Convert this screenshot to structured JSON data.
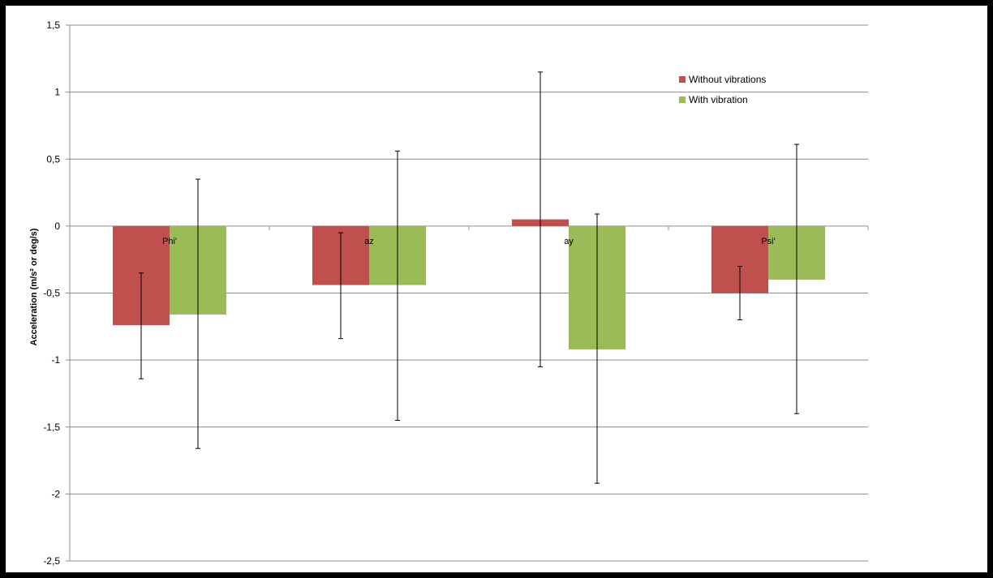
{
  "chart_data": {
    "type": "bar",
    "title": "",
    "xlabel": "",
    "ylabel": "Acceleration (m/s² or deg/s)",
    "categories": [
      "Phi'",
      "az",
      "ay",
      "Psi'"
    ],
    "ylim": [
      -2.5,
      1.5
    ],
    "yticks": [
      1.5,
      1,
      0.5,
      0,
      -0.5,
      -1,
      -1.5,
      -2,
      -2.5
    ],
    "ytick_labels": [
      "1,5",
      "1",
      "0,5",
      "0",
      "-0,5",
      "-1",
      "-1,5",
      "-2",
      "-2,5"
    ],
    "grid": true,
    "legend_position": "top-right",
    "series": [
      {
        "name": "Without vibrations",
        "color": "#C0504D",
        "values": [
          -0.74,
          -0.44,
          0.05,
          -0.5
        ],
        "error_low": [
          -1.14,
          -0.84,
          -1.05,
          -0.7
        ],
        "error_high": [
          -0.35,
          -0.05,
          1.15,
          -0.3
        ]
      },
      {
        "name": "With vibration",
        "color": "#9BBB59",
        "values": [
          -0.66,
          -0.44,
          -0.92,
          -0.4
        ],
        "error_low": [
          -1.66,
          -1.45,
          -1.92,
          -1.4
        ],
        "error_high": [
          0.35,
          0.56,
          0.09,
          0.61
        ]
      }
    ]
  }
}
